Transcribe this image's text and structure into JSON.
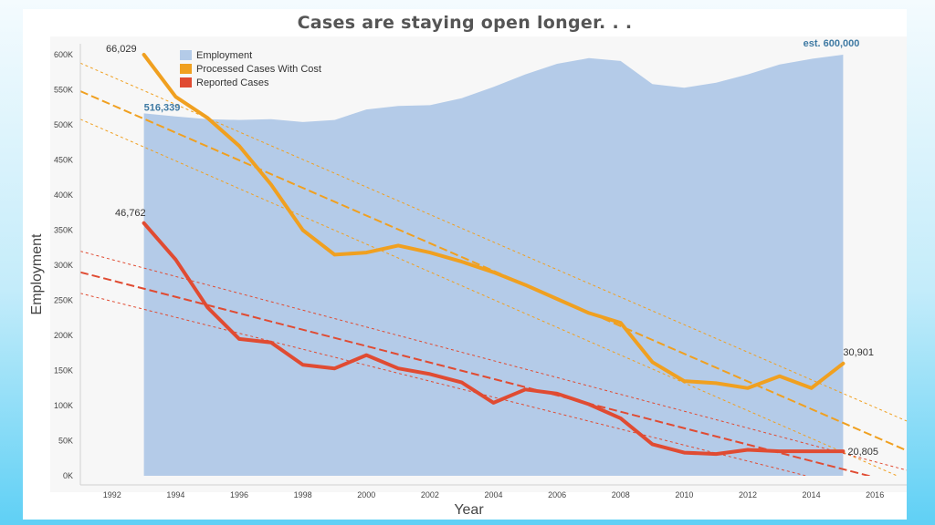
{
  "chart_data": {
    "type": "area",
    "title": "Cases are staying open longer. . .",
    "xlabel": "Year",
    "ylabel": "Employment",
    "xlim": [
      1991,
      2017
    ],
    "ylim": [
      0,
      600000
    ],
    "x_ticks": [
      1992,
      1994,
      1996,
      1998,
      2000,
      2002,
      2004,
      2006,
      2008,
      2010,
      2012,
      2014,
      2016
    ],
    "y_ticks": [
      {
        "value": 0,
        "label": "0K"
      },
      {
        "value": 50000,
        "label": "50K"
      },
      {
        "value": 100000,
        "label": "100K"
      },
      {
        "value": 150000,
        "label": "150K"
      },
      {
        "value": 200000,
        "label": "200K"
      },
      {
        "value": 250000,
        "label": "250K"
      },
      {
        "value": 300000,
        "label": "300K"
      },
      {
        "value": 350000,
        "label": "350K"
      },
      {
        "value": 400000,
        "label": "400K"
      },
      {
        "value": 450000,
        "label": "450K"
      },
      {
        "value": 500000,
        "label": "500K"
      },
      {
        "value": 550000,
        "label": "550K"
      },
      {
        "value": 600000,
        "label": "600K"
      }
    ],
    "grid": false,
    "legend_position": "top-left",
    "legend": [
      {
        "label": "Employment",
        "color": "#b4cbe8"
      },
      {
        "label": "Processed Cases With Cost",
        "color": "#f0a020"
      },
      {
        "label": "Reported Cases",
        "color": "#e04b32"
      }
    ],
    "x": [
      1993,
      1994,
      1995,
      1996,
      1997,
      1998,
      1999,
      2000,
      2001,
      2002,
      2003,
      2004,
      2005,
      2006,
      2007,
      2008,
      2009,
      2010,
      2011,
      2012,
      2013,
      2014,
      2015
    ],
    "series": [
      {
        "name": "Employment",
        "kind": "area",
        "color": "#b4cbe8",
        "values": [
          516339,
          512000,
          508000,
          507000,
          508000,
          504000,
          507000,
          522000,
          527000,
          528000,
          538000,
          554000,
          572000,
          587000,
          595000,
          591000,
          558000,
          553000,
          560000,
          572000,
          586000,
          594000,
          600000
        ]
      },
      {
        "name": "Processed Cases With Cost",
        "kind": "line",
        "color": "#f0a020",
        "values": [
          600000,
          540000,
          510000,
          470000,
          415000,
          350000,
          315000,
          318000,
          328000,
          318000,
          305000,
          290000,
          272000,
          252000,
          232000,
          218000,
          162000,
          135000,
          132000,
          125000,
          142000,
          125000,
          160000
        ]
      },
      {
        "name": "Reported Cases",
        "kind": "line",
        "color": "#e04b32",
        "values": [
          360000,
          308000,
          240000,
          195000,
          190000,
          158000,
          153000,
          172000,
          153000,
          145000,
          133000,
          104000,
          123000,
          117000,
          102000,
          82000,
          45000,
          33000,
          31000,
          37000,
          35000,
          35000,
          35000
        ]
      }
    ],
    "trendlines": [
      {
        "series": "Processed Cases With Cost",
        "color": "#f0a020",
        "style": "trend",
        "x": [
          1991,
          2017
        ],
        "y": [
          548000,
          36000
        ]
      },
      {
        "series": "Processed Cases With Cost",
        "color": "#f0a020",
        "style": "band",
        "x": [
          1991,
          2017
        ],
        "y": [
          588000,
          78000
        ]
      },
      {
        "series": "Processed Cases With Cost",
        "color": "#f0a020",
        "style": "band",
        "x": [
          1991,
          2017
        ],
        "y": [
          508000,
          -6000
        ]
      },
      {
        "series": "Reported Cases",
        "color": "#e04b32",
        "style": "trend",
        "x": [
          1991,
          2017
        ],
        "y": [
          290000,
          -14000
        ]
      },
      {
        "series": "Reported Cases",
        "color": "#e04b32",
        "style": "band",
        "x": [
          1991,
          2017
        ],
        "y": [
          320000,
          8000
        ]
      },
      {
        "series": "Reported Cases",
        "color": "#e04b32",
        "style": "band",
        "x": [
          1991,
          2017
        ],
        "y": [
          260000,
          -36000
        ]
      }
    ],
    "annotations": [
      {
        "text": "66,029",
        "x": 1993,
        "y": 600000,
        "style": "dark",
        "anchor": "end",
        "dx": -8,
        "dy": -7
      },
      {
        "text": "516,339",
        "x": 1993,
        "y": 516339,
        "style": "blue",
        "anchor": "start",
        "dx": 0,
        "dy": -7
      },
      {
        "text": "46,762",
        "x": 1993,
        "y": 360000,
        "style": "dark",
        "anchor": "end",
        "dx": 2,
        "dy": -12
      },
      {
        "text": "est. 600,000",
        "x": 2015,
        "y": 600000,
        "style": "blue",
        "anchor": "end",
        "dx": 18,
        "dy": -13
      },
      {
        "text": "30,901",
        "x": 2015,
        "y": 160000,
        "style": "dark",
        "anchor": "start",
        "dx": 0,
        "dy": -13
      },
      {
        "text": "20,805",
        "x": 2015,
        "y": 35000,
        "style": "dark",
        "anchor": "start",
        "dx": 5,
        "dy": 0
      }
    ]
  }
}
